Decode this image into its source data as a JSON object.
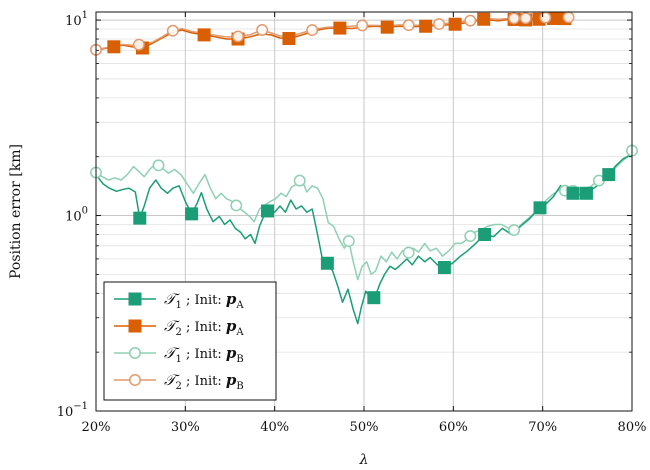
{
  "chart_data": {
    "type": "line",
    "title": "",
    "xlabel": "λ",
    "ylabel": "Position error [km]",
    "xlim": [
      20,
      80
    ],
    "ylim": [
      0.1,
      11
    ],
    "yscale": "log",
    "grid": true,
    "legend_position": "bottom-left",
    "x_ticks": [
      20,
      30,
      40,
      50,
      60,
      70,
      80
    ],
    "x_tick_labels": [
      "20%",
      "30%",
      "40%",
      "50%",
      "60%",
      "70%",
      "80%"
    ],
    "y_tick_values": [
      0.1,
      1,
      10
    ],
    "y_tick_base": "10",
    "y_tick_exponents": [
      "−1",
      "0",
      "1"
    ],
    "series": [
      {
        "legend_parts": [
          "𝒯",
          "1",
          " ; Init: ",
          "p",
          "A"
        ],
        "color": "#1b9e77",
        "marker": "square",
        "filled": true,
        "points": [
          [
            20,
            1.62
          ],
          [
            20.8,
            1.45
          ],
          [
            21.5,
            1.38
          ],
          [
            22.3,
            1.33
          ],
          [
            23,
            1.36
          ],
          [
            23.7,
            1.38
          ],
          [
            24.4,
            1.32
          ],
          [
            24.9,
            0.97
          ],
          [
            25.4,
            1.12
          ],
          [
            26,
            1.38
          ],
          [
            26.7,
            1.52
          ],
          [
            27.3,
            1.38
          ],
          [
            28,
            1.3
          ],
          [
            28.6,
            1.38
          ],
          [
            29.3,
            1.42
          ],
          [
            30,
            1.18
          ],
          [
            30.7,
            1.02
          ],
          [
            31.3,
            1.15
          ],
          [
            31.8,
            1.31
          ],
          [
            32.4,
            1.08
          ],
          [
            33.1,
            0.93
          ],
          [
            33.8,
            0.99
          ],
          [
            34.4,
            0.9
          ],
          [
            35,
            0.95
          ],
          [
            35.6,
            0.86
          ],
          [
            36.2,
            0.82
          ],
          [
            36.7,
            0.76
          ],
          [
            37.3,
            0.8
          ],
          [
            37.8,
            0.72
          ],
          [
            38.3,
            0.88
          ],
          [
            38.8,
            1.0
          ],
          [
            39.3,
            1.07
          ],
          [
            40,
            1.04
          ],
          [
            40.6,
            1.12
          ],
          [
            41.2,
            1.04
          ],
          [
            41.8,
            1.2
          ],
          [
            42.4,
            1.08
          ],
          [
            43,
            1.12
          ],
          [
            43.6,
            1.04
          ],
          [
            44.2,
            1.08
          ],
          [
            44.8,
            0.8
          ],
          [
            45.4,
            0.58
          ],
          [
            45.9,
            0.57
          ],
          [
            46.5,
            0.52
          ],
          [
            47.1,
            0.43
          ],
          [
            47.6,
            0.36
          ],
          [
            48.2,
            0.42
          ],
          [
            48.8,
            0.33
          ],
          [
            49.3,
            0.28
          ],
          [
            49.7,
            0.34
          ],
          [
            50.2,
            0.41
          ],
          [
            50.7,
            0.38
          ],
          [
            51.2,
            0.38
          ],
          [
            51.8,
            0.45
          ],
          [
            52.3,
            0.5
          ],
          [
            52.9,
            0.55
          ],
          [
            53.5,
            0.53
          ],
          [
            54.1,
            0.56
          ],
          [
            54.8,
            0.6
          ],
          [
            55.4,
            0.56
          ],
          [
            56.1,
            0.62
          ],
          [
            56.8,
            0.58
          ],
          [
            57.4,
            0.61
          ],
          [
            58.2,
            0.56
          ],
          [
            59.1,
            0.54
          ],
          [
            59.9,
            0.57
          ],
          [
            60.8,
            0.62
          ],
          [
            61.6,
            0.66
          ],
          [
            62.5,
            0.72
          ],
          [
            63.5,
            0.8
          ],
          [
            64.5,
            0.78
          ],
          [
            65.5,
            0.86
          ],
          [
            66.5,
            0.8
          ],
          [
            67.5,
            0.88
          ],
          [
            68.5,
            0.96
          ],
          [
            69.5,
            1.08
          ],
          [
            70.4,
            1.15
          ],
          [
            71.2,
            1.25
          ],
          [
            72,
            1.42
          ],
          [
            72.7,
            1.35
          ],
          [
            73.4,
            1.3
          ],
          [
            74.2,
            1.28
          ],
          [
            74.9,
            1.3
          ],
          [
            75.7,
            1.38
          ],
          [
            76.5,
            1.46
          ],
          [
            77.4,
            1.62
          ],
          [
            78.2,
            1.8
          ],
          [
            79,
            1.95
          ],
          [
            80,
            2.05
          ]
        ],
        "marker_x": [
          24.9,
          30.7,
          39.2,
          45.9,
          51.1,
          59.0,
          63.5,
          69.7,
          73.4,
          74.9,
          77.4
        ]
      },
      {
        "legend_parts": [
          "𝒯",
          "2",
          " ; Init: ",
          "p",
          "A"
        ],
        "color": "#d95f02",
        "marker": "square",
        "filled": true,
        "points": [
          [
            20,
            7.0
          ],
          [
            21,
            7.15
          ],
          [
            22,
            7.3
          ],
          [
            23,
            7.45
          ],
          [
            24,
            7.3
          ],
          [
            25.2,
            7.2
          ],
          [
            26.3,
            7.6
          ],
          [
            27.4,
            8.1
          ],
          [
            28.5,
            8.6
          ],
          [
            29.6,
            8.9
          ],
          [
            30.7,
            8.6
          ],
          [
            32.1,
            8.4
          ],
          [
            33.4,
            8.2
          ],
          [
            34.6,
            8.0
          ],
          [
            35.9,
            8.0
          ],
          [
            37.2,
            8.2
          ],
          [
            38.5,
            8.5
          ],
          [
            39.6,
            8.4
          ],
          [
            40.6,
            8.1
          ],
          [
            41.6,
            8.05
          ],
          [
            42.7,
            8.3
          ],
          [
            43.8,
            8.6
          ],
          [
            44.9,
            8.9
          ],
          [
            46,
            9.1
          ],
          [
            47.3,
            9.1
          ],
          [
            48.6,
            9.05
          ],
          [
            49.9,
            9.2
          ],
          [
            51.2,
            9.3
          ],
          [
            52.6,
            9.2
          ],
          [
            54,
            9.3
          ],
          [
            55.4,
            9.25
          ],
          [
            56.9,
            9.3
          ],
          [
            58.5,
            9.4
          ],
          [
            60,
            9.5
          ],
          [
            61.7,
            9.7
          ],
          [
            63.4,
            10.1
          ],
          [
            65,
            9.9
          ],
          [
            66.5,
            10.1
          ],
          [
            67.8,
            10.0
          ],
          [
            69.1,
            10.1
          ],
          [
            70.3,
            10.1
          ],
          [
            71.3,
            10.2
          ],
          [
            72.3,
            10.2
          ],
          [
            73.2,
            10.1
          ]
        ],
        "marker_x": [
          22.0,
          25.2,
          32.1,
          35.9,
          41.6,
          47.3,
          52.6,
          56.9,
          60.2,
          63.4,
          66.8,
          68.1,
          69.6,
          71.2,
          72.5
        ]
      },
      {
        "legend_parts": [
          "𝒯",
          "1",
          " ; Init: ",
          "p",
          "B"
        ],
        "color": "#8fd0b3",
        "marker": "circle",
        "filled": false,
        "points": [
          [
            20,
            1.66
          ],
          [
            20.7,
            1.58
          ],
          [
            21.4,
            1.52
          ],
          [
            22.1,
            1.56
          ],
          [
            22.8,
            1.52
          ],
          [
            23.5,
            1.62
          ],
          [
            24.2,
            1.78
          ],
          [
            24.8,
            1.68
          ],
          [
            25.4,
            1.58
          ],
          [
            26,
            1.72
          ],
          [
            26.7,
            1.85
          ],
          [
            27.4,
            1.75
          ],
          [
            28.1,
            1.65
          ],
          [
            28.8,
            1.72
          ],
          [
            29.5,
            1.62
          ],
          [
            30.2,
            1.45
          ],
          [
            30.9,
            1.3
          ],
          [
            31.5,
            1.45
          ],
          [
            32.2,
            1.62
          ],
          [
            32.8,
            1.38
          ],
          [
            33.4,
            1.22
          ],
          [
            34,
            1.3
          ],
          [
            34.6,
            1.22
          ],
          [
            35.3,
            1.18
          ],
          [
            35.9,
            1.1
          ],
          [
            36.5,
            1.05
          ],
          [
            37.1,
            1.0
          ],
          [
            37.7,
            0.93
          ],
          [
            38.3,
            1.08
          ],
          [
            38.9,
            1.13
          ],
          [
            39.5,
            1.18
          ],
          [
            40.1,
            1.22
          ],
          [
            40.7,
            1.3
          ],
          [
            41.3,
            1.25
          ],
          [
            41.9,
            1.4
          ],
          [
            42.5,
            1.45
          ],
          [
            43,
            1.55
          ],
          [
            43.6,
            1.32
          ],
          [
            44.2,
            1.42
          ],
          [
            44.8,
            1.38
          ],
          [
            45.4,
            1.22
          ],
          [
            46,
            0.92
          ],
          [
            46.6,
            0.88
          ],
          [
            47.2,
            0.76
          ],
          [
            47.8,
            0.68
          ],
          [
            48.3,
            0.74
          ],
          [
            48.8,
            0.58
          ],
          [
            49.3,
            0.47
          ],
          [
            49.8,
            0.55
          ],
          [
            50.3,
            0.58
          ],
          [
            50.8,
            0.5
          ],
          [
            51.3,
            0.52
          ],
          [
            51.9,
            0.62
          ],
          [
            52.5,
            0.58
          ],
          [
            53.1,
            0.65
          ],
          [
            53.7,
            0.6
          ],
          [
            54.3,
            0.66
          ],
          [
            54.9,
            0.64
          ],
          [
            55.5,
            0.68
          ],
          [
            56.1,
            0.65
          ],
          [
            56.8,
            0.72
          ],
          [
            57.4,
            0.66
          ],
          [
            58.1,
            0.68
          ],
          [
            58.8,
            0.62
          ],
          [
            59.5,
            0.66
          ],
          [
            60.2,
            0.72
          ],
          [
            60.9,
            0.72
          ],
          [
            61.6,
            0.76
          ],
          [
            62.3,
            0.82
          ],
          [
            63,
            0.84
          ],
          [
            63.8,
            0.88
          ],
          [
            64.6,
            0.9
          ],
          [
            65.4,
            0.9
          ],
          [
            66.2,
            0.86
          ],
          [
            66.9,
            0.84
          ],
          [
            67.6,
            0.9
          ],
          [
            68.3,
            0.96
          ],
          [
            69,
            1.02
          ],
          [
            69.7,
            1.08
          ],
          [
            70.4,
            1.2
          ],
          [
            71.1,
            1.28
          ],
          [
            71.8,
            1.35
          ],
          [
            72.5,
            1.34
          ],
          [
            73.2,
            1.33
          ],
          [
            73.9,
            1.35
          ],
          [
            74.6,
            1.38
          ],
          [
            75.3,
            1.4
          ],
          [
            76,
            1.48
          ],
          [
            76.7,
            1.55
          ],
          [
            77.4,
            1.62
          ],
          [
            78.1,
            1.75
          ],
          [
            78.8,
            1.88
          ],
          [
            79.4,
            1.98
          ],
          [
            80,
            2.15
          ]
        ],
        "marker_x": [
          20.0,
          27.0,
          35.7,
          42.8,
          48.3,
          55.0,
          61.9,
          66.8,
          72.5,
          73.4,
          76.3,
          80.0
        ]
      },
      {
        "legend_parts": [
          "𝒯",
          "2",
          " ; Init: ",
          "p",
          "B"
        ],
        "color": "#e29a6e",
        "marker": "circle",
        "filled": false,
        "points": [
          [
            20,
            7.05
          ],
          [
            21,
            7.2
          ],
          [
            22,
            7.35
          ],
          [
            23,
            7.5
          ],
          [
            24,
            7.45
          ],
          [
            25.2,
            7.5
          ],
          [
            26.3,
            7.7
          ],
          [
            27.4,
            8.2
          ],
          [
            28.5,
            8.8
          ],
          [
            29.6,
            9.05
          ],
          [
            30.7,
            8.75
          ],
          [
            32.1,
            8.55
          ],
          [
            33.4,
            8.35
          ],
          [
            34.6,
            8.2
          ],
          [
            35.9,
            8.25
          ],
          [
            37.2,
            8.4
          ],
          [
            38.6,
            8.9
          ],
          [
            39.6,
            8.6
          ],
          [
            40.6,
            8.3
          ],
          [
            41.6,
            8.25
          ],
          [
            42.7,
            8.5
          ],
          [
            43.8,
            8.8
          ],
          [
            44.9,
            9.05
          ],
          [
            46,
            9.2
          ],
          [
            47.3,
            9.2
          ],
          [
            48.6,
            9.3
          ],
          [
            49.9,
            9.4
          ],
          [
            51.2,
            9.4
          ],
          [
            52.6,
            9.35
          ],
          [
            54,
            9.45
          ],
          [
            55.4,
            9.4
          ],
          [
            56.9,
            9.45
          ],
          [
            58.5,
            9.55
          ],
          [
            60,
            9.7
          ],
          [
            61.7,
            9.9
          ],
          [
            63.4,
            10.2
          ],
          [
            65,
            10.1
          ],
          [
            66.5,
            10.2
          ],
          [
            67.8,
            10.2
          ],
          [
            69.1,
            10.3
          ],
          [
            70.3,
            10.3
          ],
          [
            71.3,
            10.4
          ],
          [
            72.3,
            10.4
          ],
          [
            73.2,
            10.3
          ]
        ],
        "marker_x": [
          20.0,
          24.8,
          28.6,
          35.9,
          38.6,
          44.2,
          49.8,
          55.0,
          58.4,
          61.9,
          66.8,
          68.1,
          70.3,
          72.9
        ]
      }
    ]
  }
}
